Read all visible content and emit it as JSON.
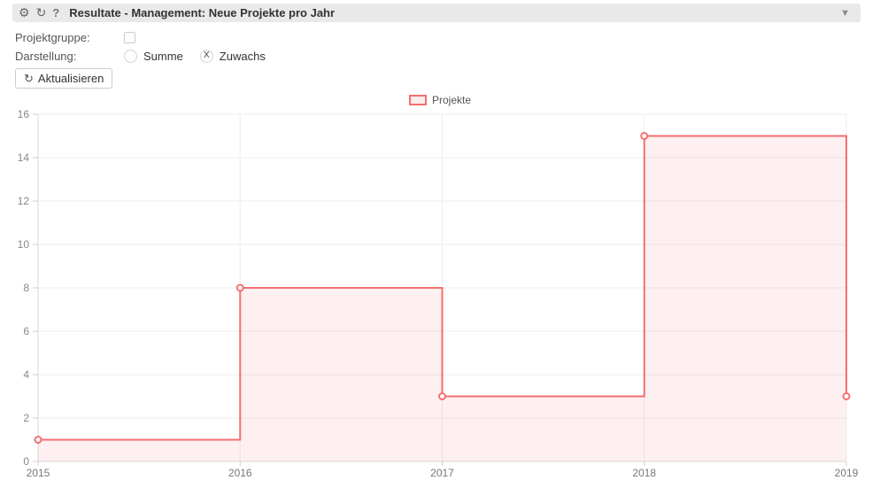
{
  "header": {
    "title": "Resultate - Management: Neue Projekte pro Jahr",
    "icons": {
      "gear": "⚙",
      "refresh": "↻",
      "help": "?",
      "collapse": "▼"
    }
  },
  "controls": {
    "projektgruppe_label": "Projektgruppe:",
    "darstellung_label": "Darstellung:",
    "radio_summe_label": "Summe",
    "radio_zuwachs_label": "Zuwachs",
    "zuwachs_checked_glyph": "X",
    "refresh_button_label": "Aktualisieren",
    "refresh_button_icon": "↻"
  },
  "legend": {
    "label": "Projekte"
  },
  "chart_data": {
    "type": "area",
    "step": "after",
    "title": "",
    "x": [
      2015,
      2016,
      2017,
      2018,
      2019
    ],
    "series": [
      {
        "name": "Projekte",
        "values": [
          1,
          8,
          3,
          15,
          3
        ]
      }
    ],
    "xlabel": "",
    "ylabel": "",
    "ylim": [
      0,
      16
    ],
    "ytick_step": 2,
    "grid": true,
    "legend_position": "top-center",
    "line_color": "#f56f6f",
    "fill_color": "#f56f6f",
    "fill_opacity": 0.1,
    "marker_fill": "#ffffff"
  }
}
